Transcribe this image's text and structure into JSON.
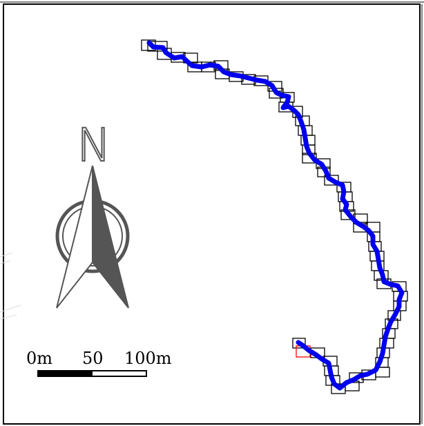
{
  "map": {
    "north_label": "N",
    "scale_labels": [
      "0m",
      "50",
      "100m"
    ],
    "colors": {
      "track": "#0000ee",
      "box": "#000000",
      "highlight_box": "#ff0000",
      "compass_dark": "#555555",
      "compass_light": "#ffffff",
      "frame": "#000000"
    }
  }
}
